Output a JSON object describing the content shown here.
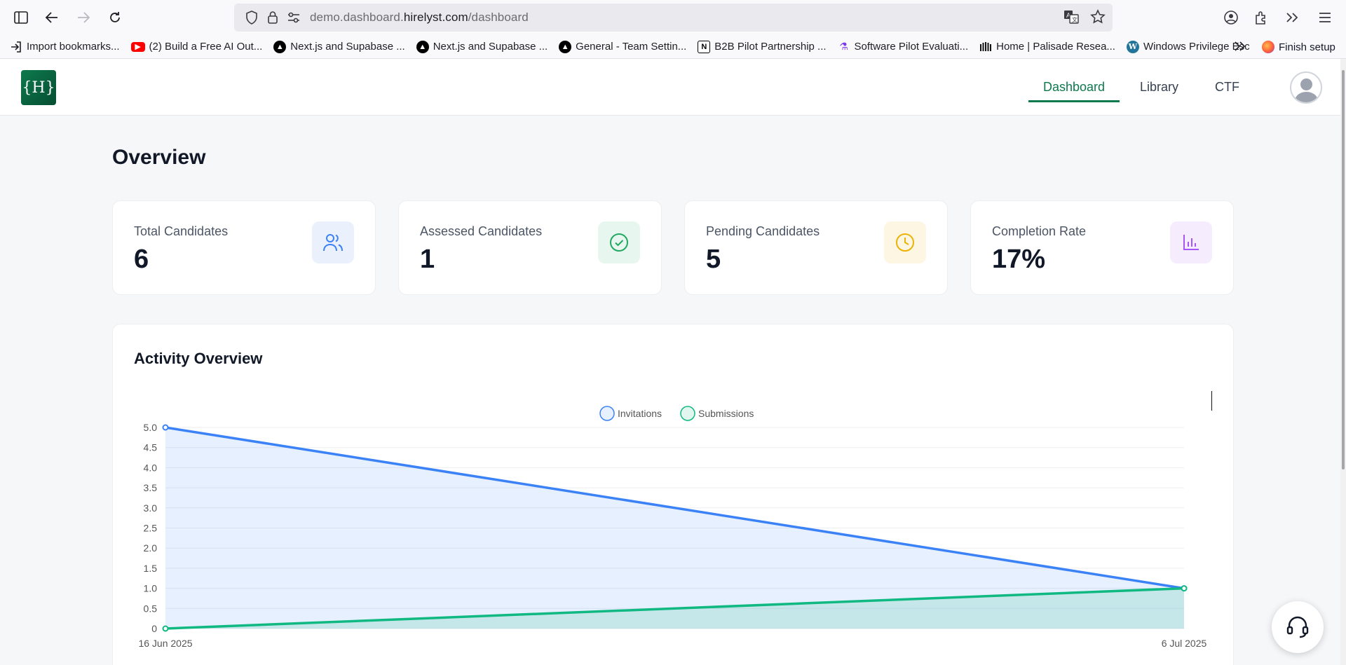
{
  "browser": {
    "url_prefix": "demo.dashboard.",
    "url_domain": "hirelyst.com",
    "url_path": "/dashboard"
  },
  "bookmarks": [
    {
      "label": "Import bookmarks...",
      "icon": "import-icon"
    },
    {
      "label": "(2) Build a Free AI Out...",
      "icon": "youtube-icon"
    },
    {
      "label": "Next.js and Supabase ...",
      "icon": "vercel-icon"
    },
    {
      "label": "Next.js and Supabase ...",
      "icon": "vercel-icon"
    },
    {
      "label": "General - Team Settin...",
      "icon": "vercel-icon"
    },
    {
      "label": "B2B Pilot Partnership ...",
      "icon": "notion-icon"
    },
    {
      "label": "Software Pilot Evaluati...",
      "icon": "flask-icon"
    },
    {
      "label": "Home | Palisade Resea...",
      "icon": "palisade-icon"
    },
    {
      "label": "Windows Privilege Esc",
      "icon": "wordpress-icon"
    }
  ],
  "bookmark_last": "Finish setup",
  "app": {
    "logo_text": "{H}",
    "nav": [
      {
        "label": "Dashboard",
        "active": true
      },
      {
        "label": "Library",
        "active": false
      },
      {
        "label": "CTF",
        "active": false
      }
    ]
  },
  "main": {
    "title": "Overview",
    "stats": [
      {
        "label": "Total Candidates",
        "value": "6",
        "icon": "users-icon",
        "icon_color": "#3b82f6",
        "icon_bg": "#eaf1fd"
      },
      {
        "label": "Assessed Candidates",
        "value": "1",
        "icon": "check-circle-icon",
        "icon_color": "#22a861",
        "icon_bg": "#e7f6ee"
      },
      {
        "label": "Pending Candidates",
        "value": "5",
        "icon": "clock-icon",
        "icon_color": "#eab308",
        "icon_bg": "#fdf6e3"
      },
      {
        "label": "Completion Rate",
        "value": "17%",
        "icon": "bar-chart-icon",
        "icon_color": "#a855f7",
        "icon_bg": "#f5ecfd"
      }
    ],
    "activity_title": "Activity Overview"
  },
  "chart_data": {
    "type": "area",
    "x": [
      "16 Jun 2025",
      "6 Jul 2025"
    ],
    "series": [
      {
        "name": "Invitations",
        "values": [
          5,
          1
        ],
        "color": "#3b82f6"
      },
      {
        "name": "Submissions",
        "values": [
          0,
          1
        ],
        "color": "#10b981"
      }
    ],
    "yticks": [
      "0",
      "0.5",
      "1.0",
      "1.5",
      "2.0",
      "2.5",
      "3.0",
      "3.5",
      "4.0",
      "4.5",
      "5.0"
    ],
    "ylim": [
      0,
      5
    ],
    "grid": true,
    "legend": "top-center"
  }
}
